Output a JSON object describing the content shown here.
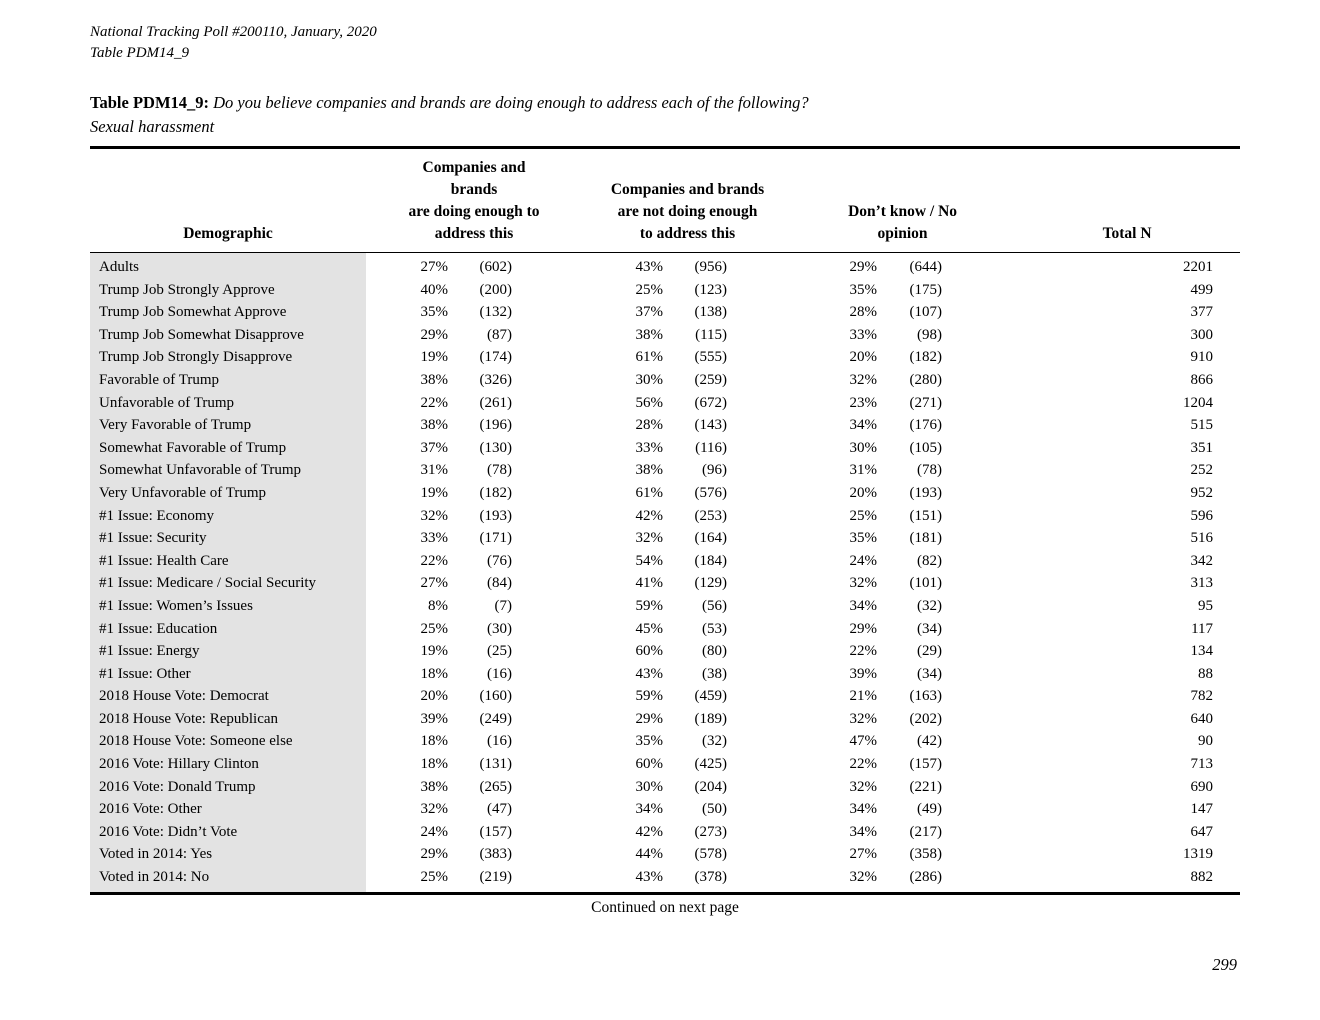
{
  "meta": {
    "line1": "National Tracking Poll #200110, January, 2020",
    "line2": "Table PDM14_9"
  },
  "title": {
    "label": "Table PDM14_9:",
    "question": "Do you believe companies and brands are doing enough to address each of the following?",
    "subtitle": "Sexual harassment"
  },
  "table": {
    "headers": {
      "demographic": "Demographic",
      "col1": "Companies and brands\nare doing enough to\naddress this",
      "col2": "Companies and brands\nare not doing enough\nto address this",
      "col3": "Don’t know / No\nopinion",
      "total": "Total N"
    },
    "rows": [
      {
        "label": "Adults",
        "enough_pct": 27,
        "enough_n": 602,
        "not_pct": 43,
        "not_n": 956,
        "dk_pct": 29,
        "dk_n": 644,
        "total": 2201
      },
      {
        "label": "Trump Job Strongly Approve",
        "enough_pct": 40,
        "enough_n": 200,
        "not_pct": 25,
        "not_n": 123,
        "dk_pct": 35,
        "dk_n": 175,
        "total": 499
      },
      {
        "label": "Trump Job Somewhat Approve",
        "enough_pct": 35,
        "enough_n": 132,
        "not_pct": 37,
        "not_n": 138,
        "dk_pct": 28,
        "dk_n": 107,
        "total": 377
      },
      {
        "label": "Trump Job Somewhat Disapprove",
        "enough_pct": 29,
        "enough_n": 87,
        "not_pct": 38,
        "not_n": 115,
        "dk_pct": 33,
        "dk_n": 98,
        "total": 300
      },
      {
        "label": "Trump Job Strongly Disapprove",
        "enough_pct": 19,
        "enough_n": 174,
        "not_pct": 61,
        "not_n": 555,
        "dk_pct": 20,
        "dk_n": 182,
        "total": 910
      },
      {
        "label": "Favorable of Trump",
        "enough_pct": 38,
        "enough_n": 326,
        "not_pct": 30,
        "not_n": 259,
        "dk_pct": 32,
        "dk_n": 280,
        "total": 866
      },
      {
        "label": "Unfavorable of Trump",
        "enough_pct": 22,
        "enough_n": 261,
        "not_pct": 56,
        "not_n": 672,
        "dk_pct": 23,
        "dk_n": 271,
        "total": 1204
      },
      {
        "label": "Very Favorable of Trump",
        "enough_pct": 38,
        "enough_n": 196,
        "not_pct": 28,
        "not_n": 143,
        "dk_pct": 34,
        "dk_n": 176,
        "total": 515
      },
      {
        "label": "Somewhat Favorable of Trump",
        "enough_pct": 37,
        "enough_n": 130,
        "not_pct": 33,
        "not_n": 116,
        "dk_pct": 30,
        "dk_n": 105,
        "total": 351
      },
      {
        "label": "Somewhat Unfavorable of Trump",
        "enough_pct": 31,
        "enough_n": 78,
        "not_pct": 38,
        "not_n": 96,
        "dk_pct": 31,
        "dk_n": 78,
        "total": 252
      },
      {
        "label": "Very Unfavorable of Trump",
        "enough_pct": 19,
        "enough_n": 182,
        "not_pct": 61,
        "not_n": 576,
        "dk_pct": 20,
        "dk_n": 193,
        "total": 952
      },
      {
        "label": "#1 Issue: Economy",
        "enough_pct": 32,
        "enough_n": 193,
        "not_pct": 42,
        "not_n": 253,
        "dk_pct": 25,
        "dk_n": 151,
        "total": 596
      },
      {
        "label": "#1 Issue: Security",
        "enough_pct": 33,
        "enough_n": 171,
        "not_pct": 32,
        "not_n": 164,
        "dk_pct": 35,
        "dk_n": 181,
        "total": 516
      },
      {
        "label": "#1 Issue: Health Care",
        "enough_pct": 22,
        "enough_n": 76,
        "not_pct": 54,
        "not_n": 184,
        "dk_pct": 24,
        "dk_n": 82,
        "total": 342
      },
      {
        "label": "#1 Issue: Medicare / Social Security",
        "enough_pct": 27,
        "enough_n": 84,
        "not_pct": 41,
        "not_n": 129,
        "dk_pct": 32,
        "dk_n": 101,
        "total": 313
      },
      {
        "label": "#1 Issue: Women’s Issues",
        "enough_pct": 8,
        "enough_n": 7,
        "not_pct": 59,
        "not_n": 56,
        "dk_pct": 34,
        "dk_n": 32,
        "total": 95
      },
      {
        "label": "#1 Issue: Education",
        "enough_pct": 25,
        "enough_n": 30,
        "not_pct": 45,
        "not_n": 53,
        "dk_pct": 29,
        "dk_n": 34,
        "total": 117
      },
      {
        "label": "#1 Issue: Energy",
        "enough_pct": 19,
        "enough_n": 25,
        "not_pct": 60,
        "not_n": 80,
        "dk_pct": 22,
        "dk_n": 29,
        "total": 134
      },
      {
        "label": "#1 Issue: Other",
        "enough_pct": 18,
        "enough_n": 16,
        "not_pct": 43,
        "not_n": 38,
        "dk_pct": 39,
        "dk_n": 34,
        "total": 88
      },
      {
        "label": "2018 House Vote: Democrat",
        "enough_pct": 20,
        "enough_n": 160,
        "not_pct": 59,
        "not_n": 459,
        "dk_pct": 21,
        "dk_n": 163,
        "total": 782
      },
      {
        "label": "2018 House Vote: Republican",
        "enough_pct": 39,
        "enough_n": 249,
        "not_pct": 29,
        "not_n": 189,
        "dk_pct": 32,
        "dk_n": 202,
        "total": 640
      },
      {
        "label": "2018 House Vote: Someone else",
        "enough_pct": 18,
        "enough_n": 16,
        "not_pct": 35,
        "not_n": 32,
        "dk_pct": 47,
        "dk_n": 42,
        "total": 90
      },
      {
        "label": "2016 Vote: Hillary Clinton",
        "enough_pct": 18,
        "enough_n": 131,
        "not_pct": 60,
        "not_n": 425,
        "dk_pct": 22,
        "dk_n": 157,
        "total": 713
      },
      {
        "label": "2016 Vote: Donald Trump",
        "enough_pct": 38,
        "enough_n": 265,
        "not_pct": 30,
        "not_n": 204,
        "dk_pct": 32,
        "dk_n": 221,
        "total": 690
      },
      {
        "label": "2016 Vote: Other",
        "enough_pct": 32,
        "enough_n": 47,
        "not_pct": 34,
        "not_n": 50,
        "dk_pct": 34,
        "dk_n": 49,
        "total": 147
      },
      {
        "label": "2016 Vote: Didn’t Vote",
        "enough_pct": 24,
        "enough_n": 157,
        "not_pct": 42,
        "not_n": 273,
        "dk_pct": 34,
        "dk_n": 217,
        "total": 647
      },
      {
        "label": "Voted in 2014: Yes",
        "enough_pct": 29,
        "enough_n": 383,
        "not_pct": 44,
        "not_n": 578,
        "dk_pct": 27,
        "dk_n": 358,
        "total": 1319
      },
      {
        "label": "Voted in 2014: No",
        "enough_pct": 25,
        "enough_n": 219,
        "not_pct": 43,
        "not_n": 378,
        "dk_pct": 32,
        "dk_n": 286,
        "total": 882
      }
    ]
  },
  "footer": {
    "continued": "Continued on next page",
    "page_number": "299"
  },
  "colors": {
    "row_shade": "#e3e3e3",
    "text": "#000000"
  }
}
